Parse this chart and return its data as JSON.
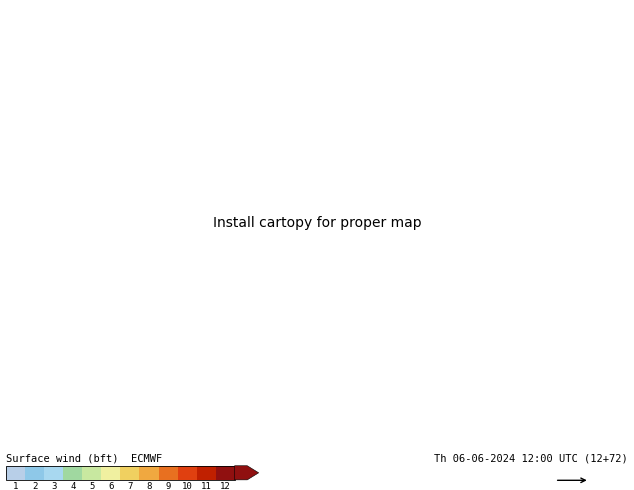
{
  "title_left": "Surface wind (bft)  ECMWF",
  "title_right": "Th 06-06-2024 12:00 UTC (12+72)",
  "colorbar_labels": [
    "1",
    "2",
    "3",
    "4",
    "5",
    "6",
    "7",
    "8",
    "9",
    "10",
    "11",
    "12"
  ],
  "colorbar_colors": [
    "#b8cfe8",
    "#8ec8e8",
    "#a8d8f0",
    "#a0d8a0",
    "#c8e8a0",
    "#f0f0a0",
    "#f0d060",
    "#f0a840",
    "#e87020",
    "#e04010",
    "#c02000",
    "#901010"
  ],
  "bg_color": "#ffffff",
  "ocean_color": "#d0e8f8",
  "fig_width": 6.34,
  "fig_height": 4.9,
  "dpi": 100,
  "lon_min": -125,
  "lon_max": -66,
  "lat_min": 24,
  "lat_max": 50,
  "map_extent_lon_min": -135,
  "map_extent_lon_max": -55,
  "map_extent_lat_min": 20,
  "map_extent_lat_max": 55
}
